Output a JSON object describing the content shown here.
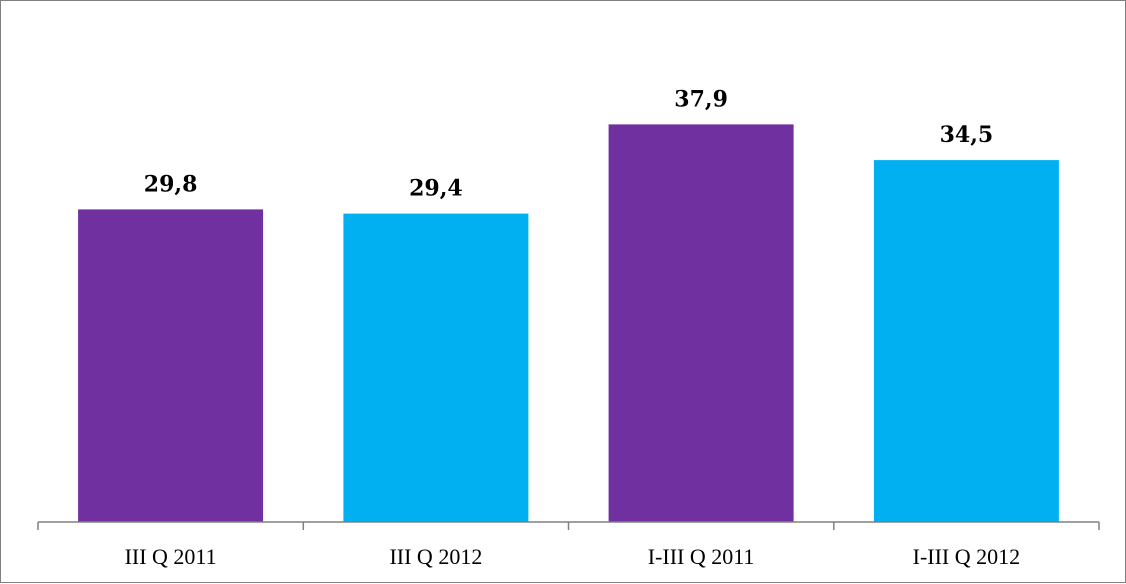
{
  "chart_data": {
    "type": "bar",
    "categories": [
      "III Q 2011",
      "III Q 2012",
      "I-III Q 2011",
      "I-III Q 2012"
    ],
    "values": [
      29.8,
      29.4,
      37.9,
      34.5
    ],
    "value_labels": [
      "29,8",
      "29,4",
      "37,9",
      "34,5"
    ],
    "colors": [
      "#7030a0",
      "#00b0f0",
      "#7030a0",
      "#00b0f0"
    ],
    "axis_color": "#808080",
    "ylim": [
      0,
      40
    ],
    "grid": false,
    "legend": "none"
  }
}
